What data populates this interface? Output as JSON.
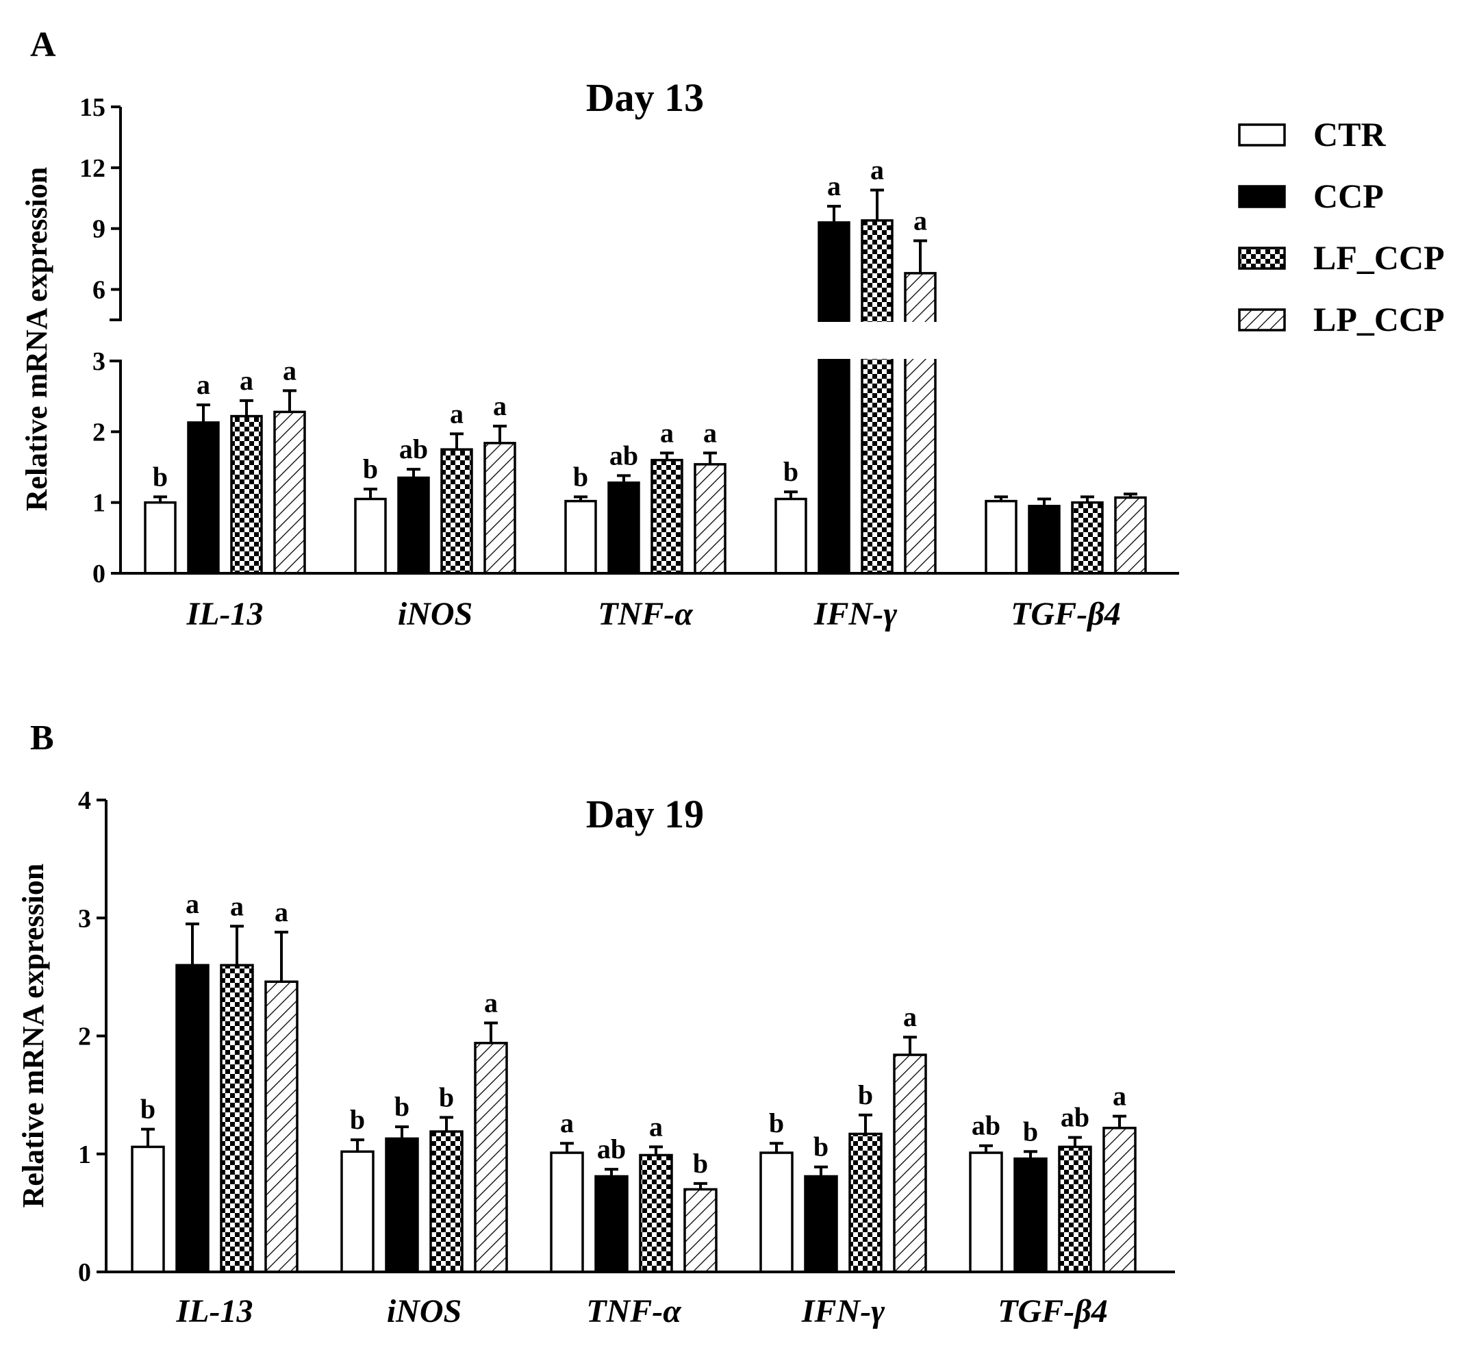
{
  "chart_data": [
    {
      "type": "bar",
      "panel": "A",
      "title": "Day 13",
      "xlabel": "",
      "ylabel": "Relative mRNA expression",
      "categories": [
        "IL-13",
        "iNOS",
        "TNF-α",
        "IFN-γ",
        "TGF-β4"
      ],
      "ylim": [
        0,
        15
      ],
      "axis_break": [
        3,
        4.5
      ],
      "yticks": [
        0,
        1,
        2,
        3,
        6,
        9,
        12,
        15
      ],
      "series": [
        {
          "name": "CTR",
          "values": [
            1.0,
            1.05,
            1.02,
            1.05,
            1.02
          ],
          "errors": [
            0.08,
            0.14,
            0.06,
            0.1,
            0.06
          ],
          "labels": [
            "b",
            "b",
            "b",
            "b",
            ""
          ]
        },
        {
          "name": "CCP",
          "values": [
            2.13,
            1.35,
            1.28,
            9.3,
            0.95
          ],
          "errors": [
            0.25,
            0.12,
            0.1,
            0.8,
            0.1
          ],
          "labels": [
            "a",
            "ab",
            "ab",
            "a",
            ""
          ]
        },
        {
          "name": "LF_CCP",
          "values": [
            2.22,
            1.75,
            1.6,
            9.4,
            1.0
          ],
          "errors": [
            0.22,
            0.22,
            0.1,
            1.5,
            0.08
          ],
          "labels": [
            "a",
            "a",
            "a",
            "a",
            ""
          ]
        },
        {
          "name": "LP_CCP",
          "values": [
            2.28,
            1.84,
            1.54,
            6.8,
            1.07
          ],
          "errors": [
            0.3,
            0.24,
            0.16,
            1.6,
            0.05
          ],
          "labels": [
            "a",
            "a",
            "a",
            "a",
            ""
          ]
        }
      ]
    },
    {
      "type": "bar",
      "panel": "B",
      "title": "Day 19",
      "xlabel": "",
      "ylabel": "Relative mRNA expression",
      "categories": [
        "IL-13",
        "iNOS",
        "TNF-α",
        "IFN-γ",
        "TGF-β4"
      ],
      "ylim": [
        0,
        4
      ],
      "yticks": [
        0,
        1,
        2,
        3,
        4
      ],
      "series": [
        {
          "name": "CTR",
          "values": [
            1.06,
            1.02,
            1.01,
            1.01,
            1.01
          ],
          "errors": [
            0.15,
            0.1,
            0.08,
            0.08,
            0.06
          ],
          "labels": [
            "b",
            "b",
            "a",
            "b",
            "ab"
          ]
        },
        {
          "name": "CCP",
          "values": [
            2.6,
            1.13,
            0.81,
            0.81,
            0.96
          ],
          "errors": [
            0.35,
            0.1,
            0.06,
            0.08,
            0.06
          ],
          "labels": [
            "a",
            "b",
            "ab",
            "b",
            "b"
          ]
        },
        {
          "name": "LF_CCP",
          "values": [
            2.6,
            1.19,
            0.99,
            1.17,
            1.06
          ],
          "errors": [
            0.33,
            0.12,
            0.07,
            0.16,
            0.08
          ],
          "labels": [
            "a",
            "b",
            "a",
            "b",
            "ab"
          ]
        },
        {
          "name": "LP_CCP",
          "values": [
            2.46,
            1.94,
            0.7,
            1.84,
            1.22
          ],
          "errors": [
            0.42,
            0.17,
            0.05,
            0.15,
            0.1
          ],
          "labels": [
            "a",
            "a",
            "b",
            "a",
            "a"
          ]
        }
      ]
    }
  ],
  "legend": {
    "items": [
      {
        "name": "CTR",
        "style": "open"
      },
      {
        "name": "CCP",
        "style": "solid"
      },
      {
        "name": "LF_CCP",
        "style": "checker"
      },
      {
        "name": "LP_CCP",
        "style": "hatch"
      }
    ]
  },
  "colors": {
    "ink": "#000000",
    "background": "#ffffff"
  }
}
